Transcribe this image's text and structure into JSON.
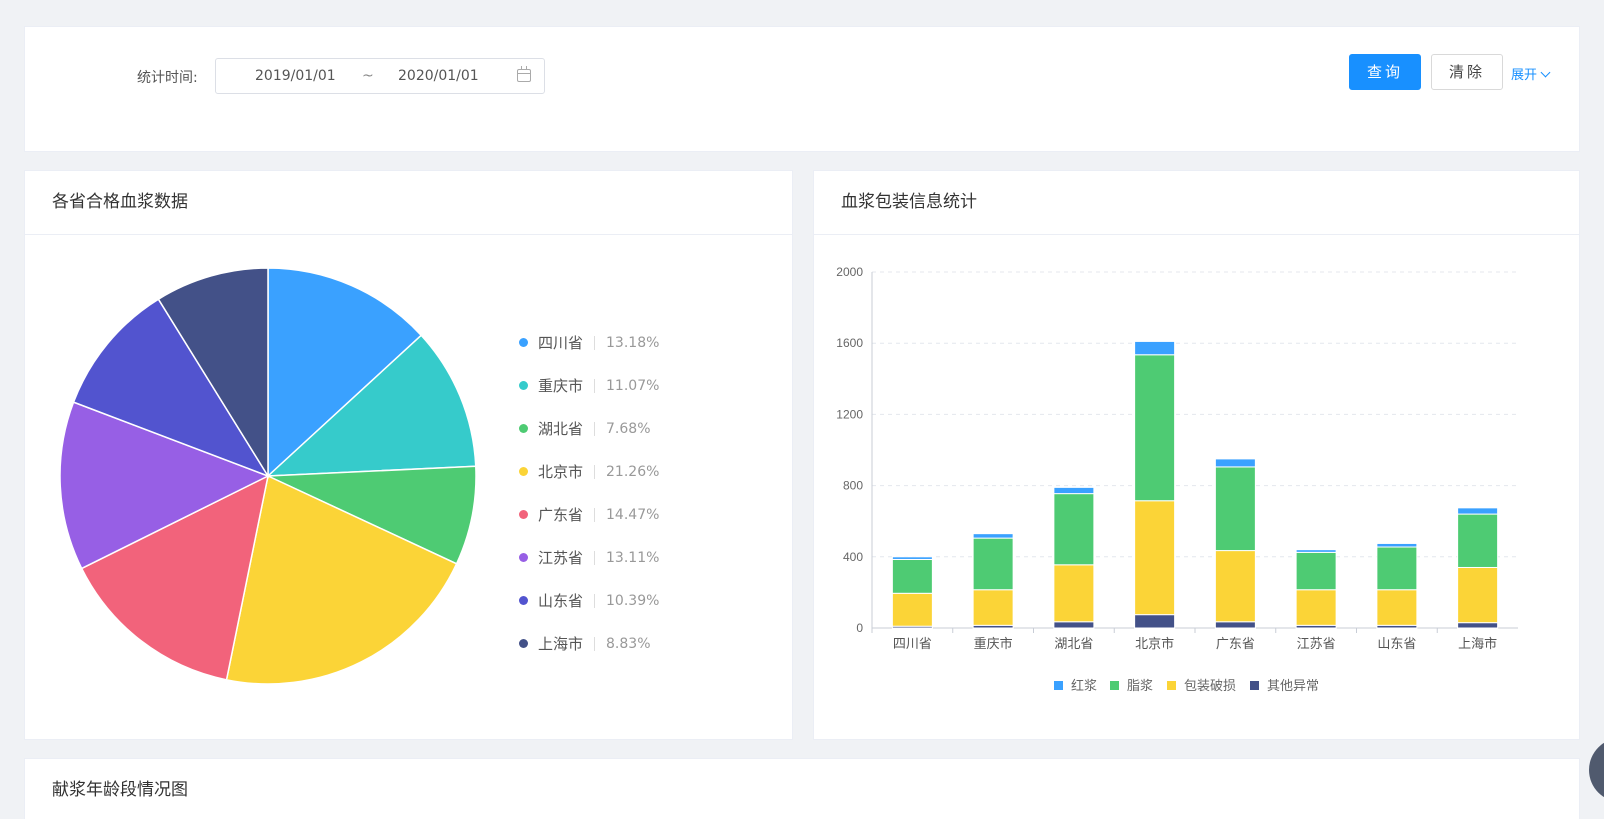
{
  "filter": {
    "label": "统计时间:",
    "date_start": "2019/01/01",
    "date_sep": "~",
    "date_end": "2020/01/01",
    "query_label": "查询",
    "clear_label": "清除",
    "expand_label": "展开"
  },
  "pie_panel": {
    "title": "各省合格血浆数据"
  },
  "bar_panel": {
    "title": "血浆包装信息统计"
  },
  "age_panel": {
    "title": "献浆年龄段情况图"
  },
  "colors": {
    "accent": "#1890ff",
    "bar_red_plasma": "#3aa1ff",
    "bar_fat_plasma": "#4ecb73",
    "bar_damaged": "#fbd437",
    "bar_other": "#435188"
  },
  "chart_data": [
    {
      "type": "pie",
      "slices": [
        {
          "label": "四川省",
          "value": 13.18,
          "pct": "13.18%",
          "color": "#3aa1ff"
        },
        {
          "label": "重庆市",
          "value": 11.07,
          "pct": "11.07%",
          "color": "#36cbcb"
        },
        {
          "label": "湖北省",
          "value": 7.68,
          "pct": "7.68%",
          "color": "#4ecb73"
        },
        {
          "label": "北京市",
          "value": 21.26,
          "pct": "21.26%",
          "color": "#fbd437"
        },
        {
          "label": "广东省",
          "value": 14.47,
          "pct": "14.47%",
          "color": "#f2637b"
        },
        {
          "label": "江苏省",
          "value": 13.11,
          "pct": "13.11%",
          "color": "#975fe5"
        },
        {
          "label": "山东省",
          "value": 10.39,
          "pct": "10.39%",
          "color": "#5254cf"
        },
        {
          "label": "上海市",
          "value": 8.83,
          "pct": "8.83%",
          "color": "#435188"
        }
      ],
      "legend_position": "right"
    },
    {
      "type": "bar",
      "stacked": true,
      "categories": [
        "四川省",
        "重庆市",
        "湖北省",
        "北京市",
        "广东省",
        "江苏省",
        "山东省",
        "上海市"
      ],
      "series": [
        {
          "name": "红浆",
          "color": "#3aa1ff",
          "values": [
            15,
            25,
            35,
            75,
            45,
            15,
            20,
            35
          ]
        },
        {
          "name": "脂浆",
          "color": "#4ecb73",
          "values": [
            190,
            290,
            400,
            820,
            470,
            210,
            240,
            300
          ]
        },
        {
          "name": "包装破损",
          "color": "#fbd437",
          "values": [
            185,
            200,
            320,
            640,
            400,
            200,
            200,
            310
          ]
        },
        {
          "name": "其他异常",
          "color": "#435188",
          "values": [
            10,
            15,
            35,
            75,
            35,
            15,
            15,
            30
          ]
        }
      ],
      "ylim": [
        0,
        2000
      ],
      "yticks": [
        0,
        400,
        800,
        1200,
        1600,
        2000
      ],
      "grid": true,
      "legend_position": "bottom"
    }
  ]
}
